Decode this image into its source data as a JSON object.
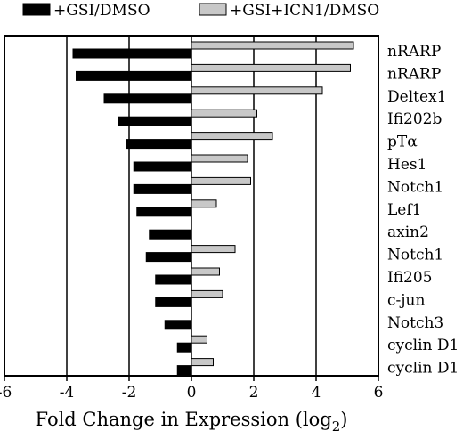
{
  "chart_data": {
    "type": "bar",
    "orientation": "horizontal",
    "xlabel_main": "Fold Change in Expression (log",
    "xlabel_sub": "2",
    "xlabel_close": ")",
    "xlim": [
      -6,
      6
    ],
    "xticks": [
      "-6",
      "-4",
      "-2",
      "0",
      "2",
      "4",
      "6"
    ],
    "gridlines_at": [
      -4,
      -2,
      2,
      4
    ],
    "legend_position": "top",
    "categories": [
      "nRARP",
      "nRARP",
      "Deltex1",
      "Ifi202b",
      "pTα",
      "Hes1",
      "Notch1",
      "Lef1",
      "axin2",
      "Notch1",
      "Ifi205",
      "c-jun",
      "Notch3",
      "cyclin D1",
      "cyclin D1"
    ],
    "series": [
      {
        "name": "+GSI/DMSO",
        "color": "#000000",
        "values": [
          -3.8,
          -3.7,
          -2.8,
          -2.35,
          -2.1,
          -1.85,
          -1.85,
          -1.75,
          -1.35,
          -1.45,
          -1.15,
          -1.15,
          -0.85,
          -0.45,
          -0.45
        ]
      },
      {
        "name": "+GSI+ICN1/DMSO",
        "color": "#c8c8c8",
        "values": [
          5.2,
          5.1,
          4.2,
          2.1,
          2.6,
          1.8,
          1.9,
          0.8,
          null,
          1.4,
          0.9,
          1.0,
          null,
          0.5,
          0.7
        ]
      }
    ]
  }
}
